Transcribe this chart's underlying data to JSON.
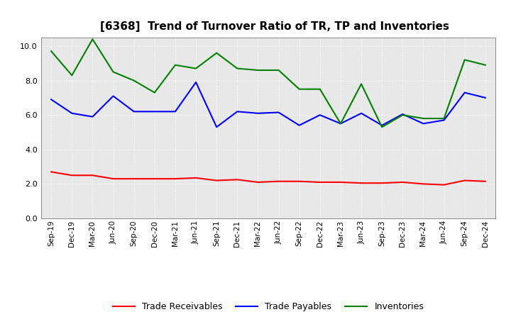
{
  "title": "[6368]  Trend of Turnover Ratio of TR, TP and Inventories",
  "x_labels": [
    "Sep-19",
    "Dec-19",
    "Mar-20",
    "Jun-20",
    "Sep-20",
    "Dec-20",
    "Mar-21",
    "Jun-21",
    "Sep-21",
    "Dec-21",
    "Mar-22",
    "Jun-22",
    "Sep-22",
    "Dec-22",
    "Mar-23",
    "Jun-23",
    "Sep-23",
    "Dec-23",
    "Mar-24",
    "Jun-24",
    "Sep-24",
    "Dec-24"
  ],
  "trade_receivables": [
    2.7,
    2.5,
    2.5,
    2.3,
    2.3,
    2.3,
    2.3,
    2.35,
    2.2,
    2.25,
    2.1,
    2.15,
    2.15,
    2.1,
    2.1,
    2.05,
    2.05,
    2.1,
    2.0,
    1.95,
    2.2,
    2.15
  ],
  "trade_payables": [
    6.9,
    6.1,
    5.9,
    7.1,
    6.2,
    6.2,
    6.2,
    7.9,
    5.3,
    6.2,
    6.1,
    6.15,
    5.4,
    6.0,
    5.5,
    6.1,
    5.4,
    6.05,
    5.5,
    5.7,
    7.3,
    7.0
  ],
  "inventories": [
    9.7,
    8.3,
    10.4,
    8.5,
    8.0,
    7.3,
    8.9,
    8.7,
    9.6,
    8.7,
    8.6,
    8.6,
    7.5,
    7.5,
    5.5,
    7.8,
    5.3,
    6.0,
    5.8,
    5.8,
    9.2,
    8.9
  ],
  "tr_color": "#ff0000",
  "tp_color": "#0000ff",
  "inv_color": "#008000",
  "background_color": "#ffffff",
  "plot_bg_color": "#e8e8e8",
  "grid_color": "#ffffff",
  "ylim": [
    0.0,
    10.5
  ],
  "yticks": [
    0.0,
    2.0,
    4.0,
    6.0,
    8.0,
    10.0
  ],
  "legend_labels": [
    "Trade Receivables",
    "Trade Payables",
    "Inventories"
  ],
  "title_fontsize": 11
}
